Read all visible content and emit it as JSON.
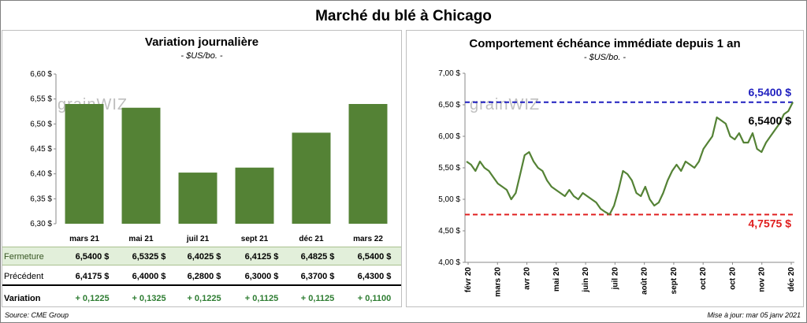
{
  "main_title": "Marché du blé à Chicago",
  "left": {
    "title": "Variation journalière",
    "subtitle": "- $US/bo. -",
    "watermark": "grainWIZ",
    "rows": {
      "fermeture_label": "Fermeture",
      "precedent_label": "Précédent",
      "variation_label": "Variation",
      "fermeture": [
        "6,5400 $",
        "6,5325 $",
        "6,4025 $",
        "6,4125 $",
        "6,4825 $",
        "6,5400 $"
      ],
      "precedent": [
        "6,4175 $",
        "6,4000 $",
        "6,2800 $",
        "6,3000 $",
        "6,3700 $",
        "6,4300 $"
      ],
      "variation": [
        "+ 0,1225",
        "+ 0,1325",
        "+ 0,1225",
        "+ 0,1125",
        "+ 0,1125",
        "+ 0,1100"
      ]
    }
  },
  "right": {
    "title": "Comportement échéance immédiate depuis 1 an",
    "subtitle": "- $US/bo. -",
    "watermark": "grainWIZ",
    "high_label": "6,5400 $",
    "last_label": "6,5400 $",
    "low_label": "4,7575 $"
  },
  "footer": {
    "source": "Source: CME Group",
    "updated": "Mise à jour: mar 05 janv 2021"
  },
  "colors": {
    "bar": "#548235",
    "line": "#548235",
    "high_line": "#1f1fbf",
    "low_line": "#e02020",
    "high_text": "#1f1fbf",
    "low_text": "#e02020"
  },
  "chart_data": [
    {
      "type": "bar",
      "categories": [
        "mars 21",
        "mai 21",
        "juil 21",
        "sept 21",
        "déc 21",
        "mars 22"
      ],
      "values": [
        6.54,
        6.5325,
        6.4025,
        6.4125,
        6.4825,
        6.54
      ],
      "ylim": [
        6.3,
        6.6
      ],
      "yticks": [
        "6,30 $",
        "6,35 $",
        "6,40 $",
        "6,45 $",
        "6,50 $",
        "6,55 $",
        "6,60 $"
      ],
      "grid": false
    },
    {
      "type": "line",
      "x_labels": [
        "févr 20",
        "mars 20",
        "avr 20",
        "mai 20",
        "juin 20",
        "juil 20",
        "août 20",
        "sept 20",
        "oct 20",
        "oct 20",
        "nov 20",
        "déc 20"
      ],
      "ylim": [
        4.0,
        7.0
      ],
      "yticks": [
        "4,00 $",
        "4,50 $",
        "5,00 $",
        "5,50 $",
        "6,00 $",
        "6,50 $",
        "7,00 $"
      ],
      "high": 6.54,
      "low": 4.7575,
      "values": [
        5.6,
        5.55,
        5.45,
        5.6,
        5.5,
        5.45,
        5.35,
        5.25,
        5.2,
        5.15,
        5.0,
        5.1,
        5.4,
        5.7,
        5.75,
        5.6,
        5.5,
        5.45,
        5.3,
        5.2,
        5.15,
        5.1,
        5.05,
        5.15,
        5.05,
        5.0,
        5.1,
        5.05,
        5.0,
        4.95,
        4.85,
        4.8,
        4.76,
        4.9,
        5.15,
        5.45,
        5.4,
        5.3,
        5.1,
        5.05,
        5.2,
        5.0,
        4.9,
        4.95,
        5.1,
        5.3,
        5.45,
        5.55,
        5.45,
        5.6,
        5.55,
        5.5,
        5.6,
        5.8,
        5.9,
        6.0,
        6.3,
        6.25,
        6.2,
        6.0,
        5.95,
        6.05,
        5.9,
        5.9,
        6.05,
        5.8,
        5.75,
        5.9,
        6.0,
        6.1,
        6.2,
        6.35,
        6.4,
        6.54
      ],
      "grid": false
    }
  ]
}
